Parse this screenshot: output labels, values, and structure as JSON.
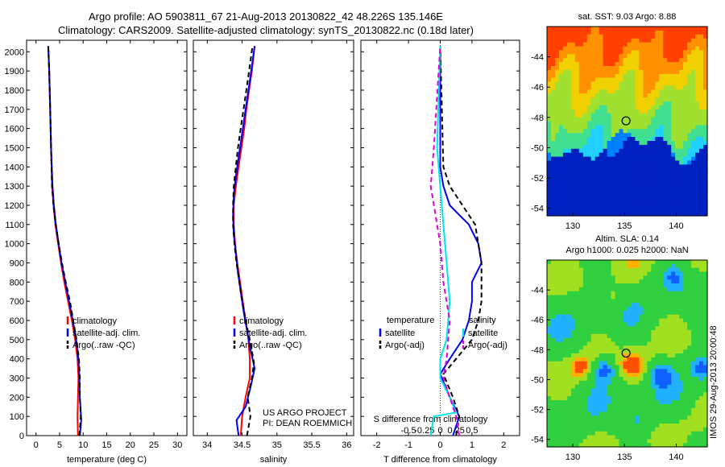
{
  "header": {
    "line1": "Argo profile: AO 5903811_67 21-Aug-2013 20130822_42 48.226S 135.146E",
    "line2": "Climatology: CARS2009. Satellite-adjusted climatology: synTS_20130822.nc (0.18d later)"
  },
  "side_label": "IMOS 29-Aug-2013 20:00:48",
  "colors": {
    "clim": "#ff0000",
    "sat": "#0000ff",
    "argo": "#000000",
    "sat_s": "#00e5e5",
    "argo_s": "#e000e0"
  },
  "chart_data": [
    {
      "type": "line",
      "xlabel": "temperature (deg C)",
      "ylabel": "",
      "xlim": [
        -2,
        32
      ],
      "ylim": [
        2060,
        0
      ],
      "xticks": [
        0,
        5,
        10,
        15,
        20,
        25,
        30
      ],
      "xtick_labels": [
        "0",
        "5",
        "10",
        "15",
        "20",
        "25",
        "30"
      ],
      "yticks": [
        0,
        100,
        200,
        300,
        400,
        500,
        600,
        700,
        800,
        900,
        1000,
        1100,
        1200,
        1300,
        1400,
        1500,
        1600,
        1700,
        1800,
        1900,
        2000
      ],
      "ytick_labels": [
        "0",
        "100",
        "200",
        "300",
        "400",
        "500",
        "600",
        "700",
        "800",
        "900",
        "1000",
        "1100",
        "1200",
        "1300",
        "1400",
        "1500",
        "1600",
        "1700",
        "1800",
        "1900",
        "2000"
      ],
      "legend": {
        "position": "lower-middle",
        "entries": [
          "climatology",
          "satellite-adj. clim.",
          "Argo(..raw -QC)"
        ]
      },
      "series": [
        {
          "name": "climatology",
          "color": "clim",
          "dash": false,
          "points": [
            [
              8.9,
              0
            ],
            [
              8.8,
              100
            ],
            [
              8.9,
              200
            ],
            [
              9.0,
              300
            ],
            [
              8.8,
              400
            ],
            [
              8.3,
              500
            ],
            [
              7.6,
              600
            ],
            [
              6.8,
              700
            ],
            [
              6.0,
              800
            ],
            [
              5.3,
              900
            ],
            [
              4.7,
              1000
            ],
            [
              4.1,
              1100
            ],
            [
              3.7,
              1200
            ],
            [
              3.4,
              1300
            ],
            [
              3.2,
              1500
            ],
            [
              3.0,
              1700
            ],
            [
              2.8,
              1900
            ],
            [
              2.6,
              2030
            ]
          ]
        },
        {
          "name": "satellite-adj. clim.",
          "color": "sat",
          "dash": false,
          "points": [
            [
              9.3,
              0
            ],
            [
              9.6,
              80
            ],
            [
              9.3,
              200
            ],
            [
              9.2,
              300
            ],
            [
              9.0,
              400
            ],
            [
              8.5,
              500
            ],
            [
              7.8,
              600
            ],
            [
              7.0,
              700
            ],
            [
              6.2,
              800
            ],
            [
              5.4,
              900
            ],
            [
              4.8,
              1000
            ],
            [
              4.2,
              1100
            ],
            [
              3.8,
              1200
            ],
            [
              3.5,
              1300
            ],
            [
              3.2,
              1500
            ],
            [
              3.0,
              1700
            ],
            [
              2.8,
              1900
            ],
            [
              2.6,
              2030
            ]
          ]
        },
        {
          "name": "Argo(..raw -QC)",
          "color": "argo",
          "dash": true,
          "points": [
            [
              9.2,
              0
            ],
            [
              9.5,
              100
            ],
            [
              9.3,
              200
            ],
            [
              9.3,
              300
            ],
            [
              9.1,
              400
            ],
            [
              8.6,
              500
            ],
            [
              7.9,
              600
            ],
            [
              7.2,
              700
            ],
            [
              6.3,
              800
            ],
            [
              5.5,
              900
            ],
            [
              4.8,
              1000
            ],
            [
              4.2,
              1100
            ],
            [
              3.7,
              1200
            ],
            [
              3.4,
              1300
            ],
            [
              3.2,
              1500
            ],
            [
              3.0,
              1700
            ],
            [
              2.8,
              1900
            ],
            [
              2.6,
              2030
            ]
          ]
        }
      ]
    },
    {
      "type": "line",
      "xlabel": "salinity",
      "xlim": [
        33.8,
        36.1
      ],
      "ylim": [
        2060,
        0
      ],
      "xticks": [
        34,
        34.5,
        35,
        35.5,
        36
      ],
      "xtick_labels": [
        "34",
        "34.5",
        "35",
        "35.5",
        "36"
      ],
      "legend": {
        "position": "lower-middle",
        "entries": [
          "climatology",
          "satellite-adj. clim.",
          "Argo(..raw -QC)"
        ]
      },
      "annotation": [
        "US ARGO PROJECT",
        "PI: DEAN ROEMMICH"
      ],
      "series": [
        {
          "name": "climatology",
          "color": "clim",
          "dash": false,
          "points": [
            [
              34.48,
              0
            ],
            [
              34.5,
              100
            ],
            [
              34.55,
              200
            ],
            [
              34.61,
              300
            ],
            [
              34.61,
              400
            ],
            [
              34.59,
              500
            ],
            [
              34.55,
              600
            ],
            [
              34.51,
              700
            ],
            [
              34.47,
              800
            ],
            [
              34.43,
              900
            ],
            [
              34.4,
              1000
            ],
            [
              34.38,
              1100
            ],
            [
              34.38,
              1200
            ],
            [
              34.41,
              1300
            ],
            [
              34.45,
              1400
            ],
            [
              34.49,
              1500
            ],
            [
              34.53,
              1600
            ],
            [
              34.56,
              1700
            ],
            [
              34.6,
              1800
            ],
            [
              34.64,
              1900
            ],
            [
              34.68,
              2030
            ]
          ]
        },
        {
          "name": "satellite-adj. clim.",
          "color": "sat",
          "dash": false,
          "points": [
            [
              34.45,
              0
            ],
            [
              34.42,
              80
            ],
            [
              34.55,
              150
            ],
            [
              34.62,
              250
            ],
            [
              34.68,
              350
            ],
            [
              34.62,
              450
            ],
            [
              34.57,
              550
            ],
            [
              34.52,
              650
            ],
            [
              34.48,
              750
            ],
            [
              34.44,
              850
            ],
            [
              34.41,
              950
            ],
            [
              34.38,
              1050
            ],
            [
              34.37,
              1150
            ],
            [
              34.38,
              1250
            ],
            [
              34.41,
              1350
            ],
            [
              34.45,
              1450
            ],
            [
              34.49,
              1550
            ],
            [
              34.53,
              1650
            ],
            [
              34.57,
              1750
            ],
            [
              34.61,
              1850
            ],
            [
              34.65,
              1950
            ],
            [
              34.68,
              2030
            ]
          ]
        },
        {
          "name": "Argo(..raw -QC)",
          "color": "argo",
          "dash": true,
          "points": [
            [
              34.57,
              0
            ],
            [
              34.62,
              100
            ],
            [
              34.58,
              200
            ],
            [
              34.64,
              300
            ],
            [
              34.67,
              380
            ],
            [
              34.61,
              500
            ],
            [
              34.55,
              600
            ],
            [
              34.5,
              700
            ],
            [
              34.46,
              800
            ],
            [
              34.42,
              900
            ],
            [
              34.39,
              1000
            ],
            [
              34.37,
              1100
            ],
            [
              34.37,
              1200
            ],
            [
              34.38,
              1300
            ],
            [
              34.41,
              1400
            ],
            [
              34.44,
              1500
            ],
            [
              34.48,
              1600
            ],
            [
              34.52,
              1700
            ],
            [
              34.56,
              1800
            ],
            [
              34.6,
              1900
            ],
            [
              34.65,
              2030
            ]
          ]
        }
      ]
    },
    {
      "type": "line",
      "xlabel": "T difference from climatology",
      "top_xlabel": "S difference from climatology",
      "xlim": [
        -2.5,
        2.5
      ],
      "ylim": [
        2060,
        0
      ],
      "xticks": [
        -2,
        -1,
        0,
        1,
        2
      ],
      "xtick_labels": [
        "-2",
        "-1",
        "0",
        "1",
        "2"
      ],
      "top_xticks": [
        -1.0,
        -0.5,
        0,
        0.5,
        1.0
      ],
      "top_xtick_labels": [
        "-0.5",
        "-0.25",
        "0",
        "0.25",
        "0.5"
      ],
      "legend": {
        "position": "lower-middle",
        "temperature_title": "temperature",
        "salinity_title": "salinity",
        "entries": [
          "satellite",
          "Argo(-adj)",
          "satellite",
          "Argo(-adj)"
        ]
      },
      "series": [
        {
          "name": "satellite",
          "color": "sat",
          "dash": false,
          "points": [
            [
              0.4,
              0
            ],
            [
              0.6,
              100
            ],
            [
              0.3,
              200
            ],
            [
              0.0,
              320
            ],
            [
              0.3,
              400
            ],
            [
              0.7,
              500
            ],
            [
              0.9,
              600
            ],
            [
              1.0,
              700
            ],
            [
              1.0,
              800
            ],
            [
              1.3,
              900
            ],
            [
              1.2,
              1000
            ],
            [
              0.9,
              1100
            ],
            [
              0.6,
              1150
            ],
            [
              0.3,
              1200
            ],
            [
              0.1,
              1300
            ],
            [
              0.0,
              1400
            ],
            [
              0.0,
              2030
            ]
          ]
        },
        {
          "name": "Argo(-adj)",
          "color": "argo",
          "dash": true,
          "points": [
            [
              0.5,
              0
            ],
            [
              0.6,
              100
            ],
            [
              0.4,
              200
            ],
            [
              0.1,
              320
            ],
            [
              0.5,
              400
            ],
            [
              1.0,
              500
            ],
            [
              1.2,
              600
            ],
            [
              1.3,
              700
            ],
            [
              1.3,
              800
            ],
            [
              1.3,
              900
            ],
            [
              1.2,
              1000
            ],
            [
              1.1,
              1100
            ],
            [
              0.7,
              1200
            ],
            [
              0.3,
              1300
            ],
            [
              0.1,
              1400
            ],
            [
              0.0,
              2030
            ]
          ]
        },
        {
          "name": "satellite",
          "color": "sat_s",
          "dash": false,
          "points": [
            [
              -0.3,
              0
            ],
            [
              -0.2,
              100
            ],
            [
              0.5,
              120
            ],
            [
              0.3,
              200
            ],
            [
              0.0,
              300
            ],
            [
              0.0,
              400
            ],
            [
              0.2,
              500
            ],
            [
              0.3,
              700
            ],
            [
              0.2,
              900
            ],
            [
              0.1,
              1100
            ],
            [
              0.0,
              1300
            ],
            [
              -0.1,
              1500
            ],
            [
              0.0,
              2030
            ]
          ]
        },
        {
          "name": "Argo(-adj)",
          "color": "argo_s",
          "dash": true,
          "points": [
            [
              0.6,
              0
            ],
            [
              0.5,
              100
            ],
            [
              0.1,
              300
            ],
            [
              0.2,
              400
            ],
            [
              0.3,
              600
            ],
            [
              0.1,
              800
            ],
            [
              0.0,
              1000
            ],
            [
              -0.3,
              1300
            ],
            [
              -0.2,
              1500
            ],
            [
              0.0,
              2030
            ]
          ]
        }
      ]
    },
    {
      "type": "heatmap",
      "title": "sat. SST: 9.03 Argo: 8.88",
      "xlim": [
        127.5,
        143
      ],
      "ylim": [
        -54.5,
        -42
      ],
      "xticks": [
        130,
        135,
        140
      ],
      "xtick_labels": [
        "130",
        "135",
        "140"
      ],
      "yticks": [
        -44,
        -46,
        -48,
        -50,
        -52,
        -54
      ],
      "ytick_labels": [
        "-44",
        "-46",
        "-48",
        "-50",
        "-52",
        "-54"
      ],
      "marker": {
        "lon": 135.146,
        "lat": -48.226
      }
    },
    {
      "type": "heatmap",
      "title": "Altim. SLA: 0.14",
      "subtitle": "Argo h1000: 0.025 h2000: NaN",
      "xlim": [
        127.5,
        143
      ],
      "ylim": [
        -54.5,
        -42
      ],
      "xticks": [
        130,
        135,
        140
      ],
      "xtick_labels": [
        "130",
        "135",
        "140"
      ],
      "yticks": [
        -44,
        -46,
        -48,
        -50,
        -52,
        -54
      ],
      "ytick_labels": [
        "-44",
        "-46",
        "-48",
        "-50",
        "-52",
        "-54"
      ],
      "marker": {
        "lon": 135.146,
        "lat": -48.226
      }
    }
  ]
}
